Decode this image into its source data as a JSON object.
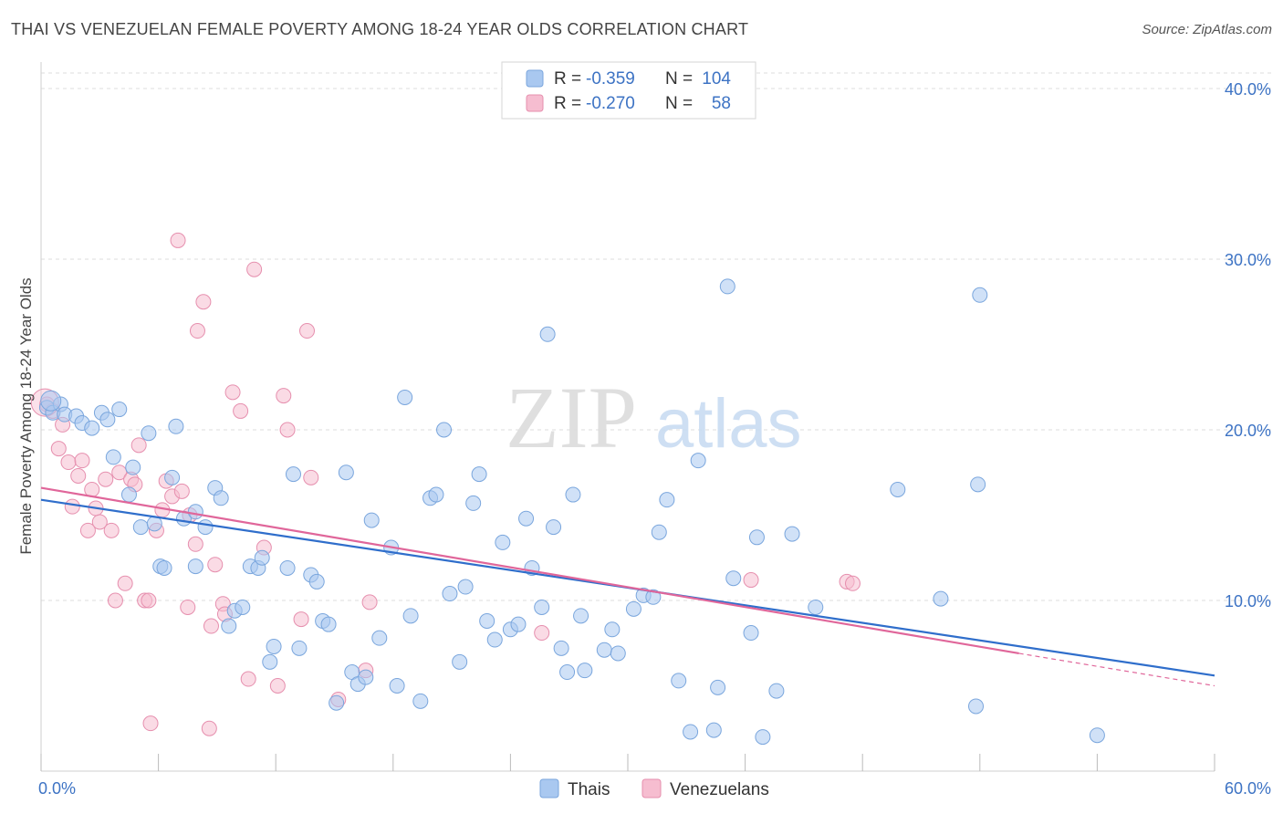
{
  "title": "THAI VS VENEZUELAN FEMALE POVERTY AMONG 18-24 YEAR OLDS CORRELATION CHART",
  "source": "Source: ZipAtlas.com",
  "watermark": {
    "zip": "ZIP",
    "atlas": "atlas"
  },
  "colors": {
    "thai_fill": "#a9c8f0",
    "thai_stroke": "#7aa6dd",
    "thai_line": "#2f6ecb",
    "ven_fill": "#f6bdd0",
    "ven_stroke": "#e68fae",
    "ven_line": "#e0669a",
    "axis_text": "#3d73c4",
    "grid": "#dcdcdc"
  },
  "legend_top": {
    "rows": [
      {
        "r_label": "R =",
        "r_value": "-0.359",
        "n_label": "N =",
        "n_value": "104"
      },
      {
        "r_label": "R =",
        "r_value": "-0.270",
        "n_label": "N =",
        "n_value": "58"
      }
    ]
  },
  "legend_bottom": [
    "Thais",
    "Venezuelans"
  ],
  "chart_data": {
    "type": "scatter",
    "title": "THAI VS VENEZUELAN FEMALE POVERTY AMONG 18-24 YEAR OLDS CORRELATION CHART",
    "xlabel": "",
    "ylabel": "Female Poverty Among 18-24 Year Olds",
    "xlim": [
      0,
      60
    ],
    "ylim": [
      0,
      40
    ],
    "x_tick_labels": [
      "0.0%",
      "60.0%"
    ],
    "y_tick_labels": [
      "10.0%",
      "20.0%",
      "30.0%",
      "40.0%"
    ],
    "y_ticks": [
      10,
      20,
      30,
      40
    ],
    "grid": true,
    "legend_position": "top-center",
    "series": [
      {
        "name": "Thais",
        "r": -0.359,
        "n": 104,
        "trend": {
          "x": [
            0,
            60
          ],
          "y": [
            15.9,
            5.6
          ]
        },
        "points": [
          [
            0.3,
            21.3
          ],
          [
            0.6,
            21.0
          ],
          [
            1.0,
            21.5
          ],
          [
            1.2,
            20.9
          ],
          [
            1.8,
            20.8
          ],
          [
            2.1,
            20.4
          ],
          [
            2.6,
            20.1
          ],
          [
            3.1,
            21.0
          ],
          [
            3.4,
            20.6
          ],
          [
            3.7,
            18.4
          ],
          [
            4.0,
            21.2
          ],
          [
            4.5,
            16.2
          ],
          [
            4.7,
            17.8
          ],
          [
            5.1,
            14.3
          ],
          [
            5.5,
            19.8
          ],
          [
            5.8,
            14.5
          ],
          [
            6.1,
            12.0
          ],
          [
            6.3,
            11.9
          ],
          [
            6.7,
            17.2
          ],
          [
            6.9,
            20.2
          ],
          [
            7.3,
            14.8
          ],
          [
            7.9,
            15.2
          ],
          [
            7.9,
            12.0
          ],
          [
            8.4,
            14.3
          ],
          [
            8.9,
            16.6
          ],
          [
            9.2,
            16.0
          ],
          [
            9.6,
            8.5
          ],
          [
            9.9,
            9.4
          ],
          [
            10.3,
            9.6
          ],
          [
            10.7,
            12.0
          ],
          [
            11.1,
            11.9
          ],
          [
            11.3,
            12.5
          ],
          [
            11.7,
            6.4
          ],
          [
            11.9,
            7.3
          ],
          [
            12.6,
            11.9
          ],
          [
            12.9,
            17.4
          ],
          [
            13.2,
            7.2
          ],
          [
            13.8,
            11.5
          ],
          [
            14.1,
            11.1
          ],
          [
            14.4,
            8.8
          ],
          [
            14.7,
            8.6
          ],
          [
            15.1,
            4.0
          ],
          [
            15.6,
            17.5
          ],
          [
            15.9,
            5.8
          ],
          [
            16.2,
            5.1
          ],
          [
            16.6,
            5.5
          ],
          [
            16.9,
            14.7
          ],
          [
            17.3,
            7.8
          ],
          [
            17.9,
            13.1
          ],
          [
            18.2,
            5.0
          ],
          [
            18.6,
            21.9
          ],
          [
            18.9,
            9.1
          ],
          [
            19.4,
            4.1
          ],
          [
            19.9,
            16.0
          ],
          [
            20.2,
            16.2
          ],
          [
            20.6,
            20.0
          ],
          [
            20.9,
            10.4
          ],
          [
            21.4,
            6.4
          ],
          [
            21.7,
            10.8
          ],
          [
            22.1,
            15.7
          ],
          [
            22.4,
            17.4
          ],
          [
            22.8,
            8.8
          ],
          [
            23.2,
            7.7
          ],
          [
            23.6,
            13.4
          ],
          [
            24.0,
            8.3
          ],
          [
            24.4,
            8.6
          ],
          [
            24.8,
            14.8
          ],
          [
            25.1,
            11.9
          ],
          [
            25.6,
            9.6
          ],
          [
            25.9,
            25.6
          ],
          [
            26.2,
            14.3
          ],
          [
            26.6,
            7.2
          ],
          [
            26.9,
            5.8
          ],
          [
            27.2,
            16.2
          ],
          [
            27.6,
            9.1
          ],
          [
            27.8,
            5.9
          ],
          [
            28.8,
            7.1
          ],
          [
            29.2,
            8.3
          ],
          [
            29.5,
            6.9
          ],
          [
            30.3,
            9.5
          ],
          [
            30.8,
            10.3
          ],
          [
            31.3,
            10.2
          ],
          [
            31.6,
            14.0
          ],
          [
            32.0,
            15.9
          ],
          [
            32.6,
            5.3
          ],
          [
            33.2,
            2.3
          ],
          [
            33.6,
            18.2
          ],
          [
            34.4,
            2.4
          ],
          [
            34.6,
            4.9
          ],
          [
            35.1,
            28.4
          ],
          [
            35.4,
            11.3
          ],
          [
            36.3,
            8.1
          ],
          [
            36.6,
            13.7
          ],
          [
            36.9,
            2.0
          ],
          [
            37.6,
            4.7
          ],
          [
            38.4,
            13.9
          ],
          [
            39.6,
            9.6
          ],
          [
            43.8,
            16.5
          ],
          [
            46.0,
            10.1
          ],
          [
            47.8,
            3.8
          ],
          [
            47.9,
            16.8
          ],
          [
            48.0,
            27.9
          ],
          [
            54.0,
            2.1
          ],
          [
            0.5,
            21.7
          ]
        ]
      },
      {
        "name": "Venezuelans",
        "r": -0.27,
        "n": 58,
        "trend": {
          "x": [
            0,
            50
          ],
          "y": [
            16.6,
            6.9
          ]
        },
        "trend_dashed": {
          "x": [
            50,
            60
          ],
          "y": [
            6.9,
            5.0
          ]
        },
        "points": [
          [
            0.3,
            21.5
          ],
          [
            0.6,
            21.1
          ],
          [
            0.9,
            18.9
          ],
          [
            1.1,
            20.3
          ],
          [
            1.4,
            18.1
          ],
          [
            1.6,
            15.5
          ],
          [
            1.9,
            17.3
          ],
          [
            2.1,
            18.2
          ],
          [
            2.4,
            14.1
          ],
          [
            2.6,
            16.5
          ],
          [
            2.8,
            15.4
          ],
          [
            3.0,
            14.6
          ],
          [
            3.3,
            17.1
          ],
          [
            3.6,
            14.1
          ],
          [
            3.8,
            10.0
          ],
          [
            4.0,
            17.5
          ],
          [
            4.3,
            11.0
          ],
          [
            4.6,
            17.1
          ],
          [
            4.8,
            16.8
          ],
          [
            5.0,
            19.1
          ],
          [
            5.3,
            10.0
          ],
          [
            5.5,
            10.0
          ],
          [
            5.6,
            2.8
          ],
          [
            5.9,
            14.1
          ],
          [
            6.2,
            15.3
          ],
          [
            6.4,
            17.0
          ],
          [
            6.7,
            16.1
          ],
          [
            7.0,
            31.1
          ],
          [
            7.2,
            16.4
          ],
          [
            7.5,
            9.6
          ],
          [
            7.6,
            15.0
          ],
          [
            7.9,
            13.3
          ],
          [
            8.0,
            25.8
          ],
          [
            8.3,
            27.5
          ],
          [
            8.6,
            2.5
          ],
          [
            8.7,
            8.5
          ],
          [
            8.9,
            12.1
          ],
          [
            9.3,
            9.8
          ],
          [
            9.4,
            9.2
          ],
          [
            9.8,
            22.2
          ],
          [
            10.2,
            21.1
          ],
          [
            10.6,
            5.4
          ],
          [
            10.9,
            29.4
          ],
          [
            11.4,
            13.1
          ],
          [
            12.1,
            5.0
          ],
          [
            12.4,
            22.0
          ],
          [
            12.6,
            20.0
          ],
          [
            13.3,
            8.9
          ],
          [
            13.6,
            25.8
          ],
          [
            13.8,
            17.2
          ],
          [
            15.2,
            4.2
          ],
          [
            16.6,
            5.9
          ],
          [
            16.8,
            9.9
          ],
          [
            25.6,
            8.1
          ],
          [
            36.3,
            11.2
          ],
          [
            41.2,
            11.1
          ],
          [
            41.5,
            11.0
          ],
          [
            0.2,
            21.6
          ]
        ]
      }
    ]
  }
}
